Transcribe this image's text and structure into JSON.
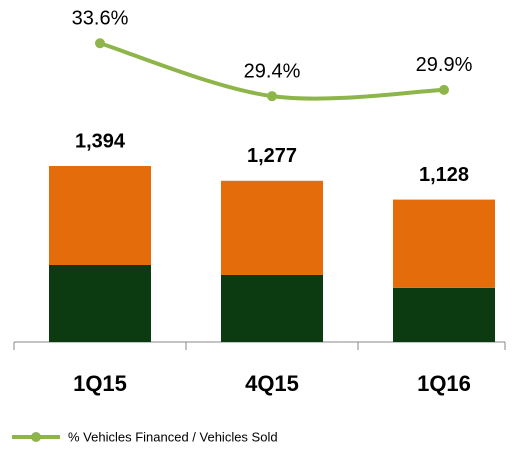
{
  "chart_data": {
    "type": "bar",
    "stacked": true,
    "categories": [
      "1Q15",
      "4Q15",
      "1Q16"
    ],
    "series": [
      {
        "color": "#0c3b12",
        "values": [
          610,
          531,
          429
        ]
      },
      {
        "color": "#e46c0a",
        "values": [
          784,
          746,
          699
        ]
      },
      {
        "name": "% Vehicles Financed / Vehicles Sold",
        "type": "line",
        "axis": "y2",
        "color": "#8db54a",
        "values": [
          33.6,
          29.4,
          29.9
        ],
        "value_labels": [
          "33.6%",
          "29.4%",
          "29.9%"
        ]
      }
    ],
    "totals": {
      "values": [
        1394,
        1277,
        1128
      ],
      "value_labels": [
        "1,394",
        "1,277",
        "1,128"
      ]
    },
    "ylim": [
      0,
      1600
    ],
    "y2lim": [
      26,
      36
    ],
    "legend": "bottom-left"
  }
}
